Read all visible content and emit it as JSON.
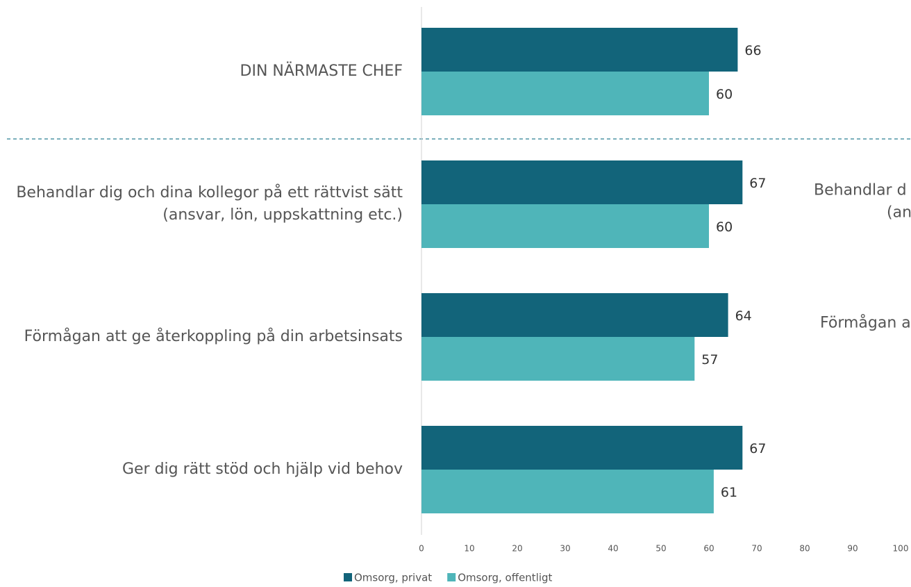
{
  "chart_data": {
    "type": "bar",
    "orientation": "horizontal",
    "categories": [
      "DIN NÄRMASTE CHEF",
      "Behandlar dig och dina kollegor på ett rättvist sätt\n(ansvar, lön, uppskattning etc.)",
      "Förmågan att ge återkoppling på din arbetsinsats",
      "Ger dig rätt stöd och hjälp vid behov"
    ],
    "series": [
      {
        "name": "Omsorg, privat",
        "color": "#12647a",
        "values": [
          66,
          67,
          64,
          67
        ]
      },
      {
        "name": "Omsorg, offentligt",
        "color": "#4fb5b9",
        "values": [
          60,
          60,
          57,
          61
        ]
      }
    ],
    "xlim": [
      0,
      100
    ],
    "xticks": [
      0,
      10,
      20,
      30,
      40,
      50,
      60,
      70,
      80,
      90,
      100
    ],
    "legend": "bottom",
    "annotations": [
      "Behandlar d",
      "(an",
      "Förmågan a"
    ]
  }
}
